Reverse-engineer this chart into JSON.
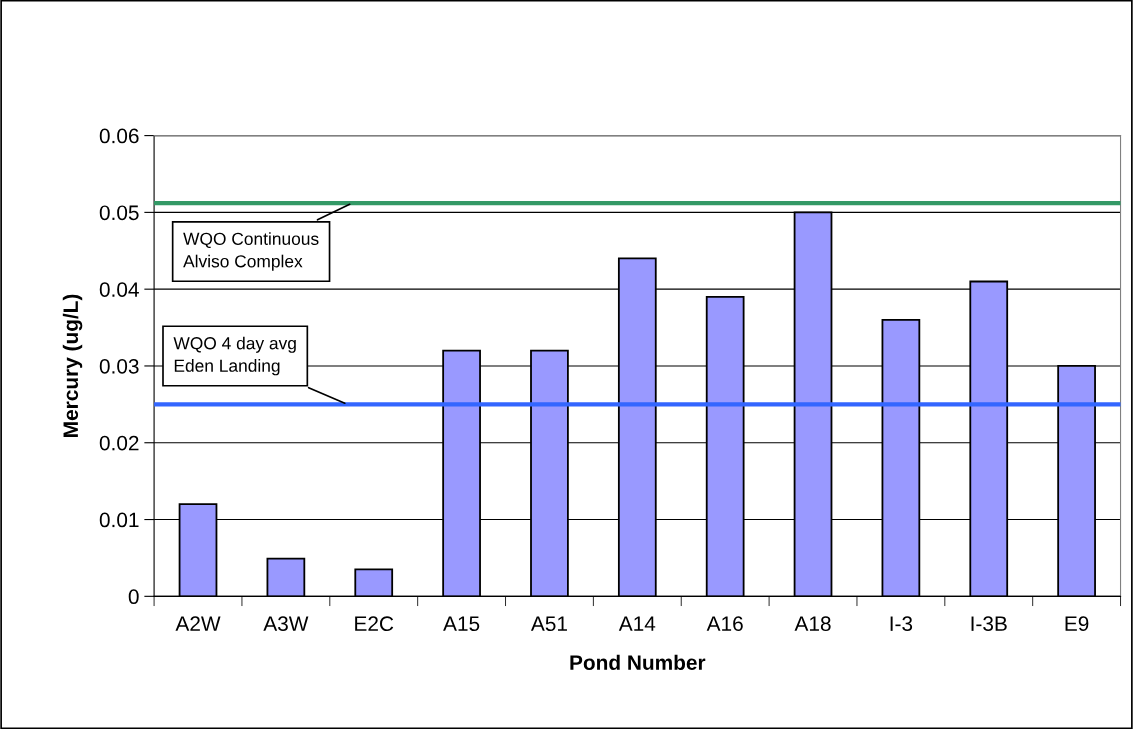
{
  "chart_data": {
    "type": "bar",
    "xlabel": "Pond Number",
    "ylabel": "Mercury (ug/L)",
    "categories": [
      "A2W",
      "A3W",
      "E2C",
      "A15",
      "A51",
      "A14",
      "A16",
      "A18",
      "I-3",
      "I-3B",
      "E9"
    ],
    "values": [
      0.012,
      0.0049,
      0.0035,
      0.032,
      0.032,
      0.044,
      0.039,
      0.05,
      0.036,
      0.041,
      0.03
    ],
    "color": "#9999ff",
    "ylim": [
      0,
      0.06
    ],
    "yticks": [
      {
        "value": 0,
        "label": "0"
      },
      0.01,
      0.02,
      0.03,
      0.04,
      0.05,
      0.06
    ],
    "grid": "y",
    "ref_lines": [
      {
        "axis": "y",
        "value": 0.0512,
        "label": "WQO Continuous\nAlviso Complex",
        "color": "#339966"
      },
      {
        "axis": "y",
        "value": 0.025,
        "label": "WQO 4 day avg\nEden Landing",
        "color": "#3366ff"
      }
    ]
  }
}
